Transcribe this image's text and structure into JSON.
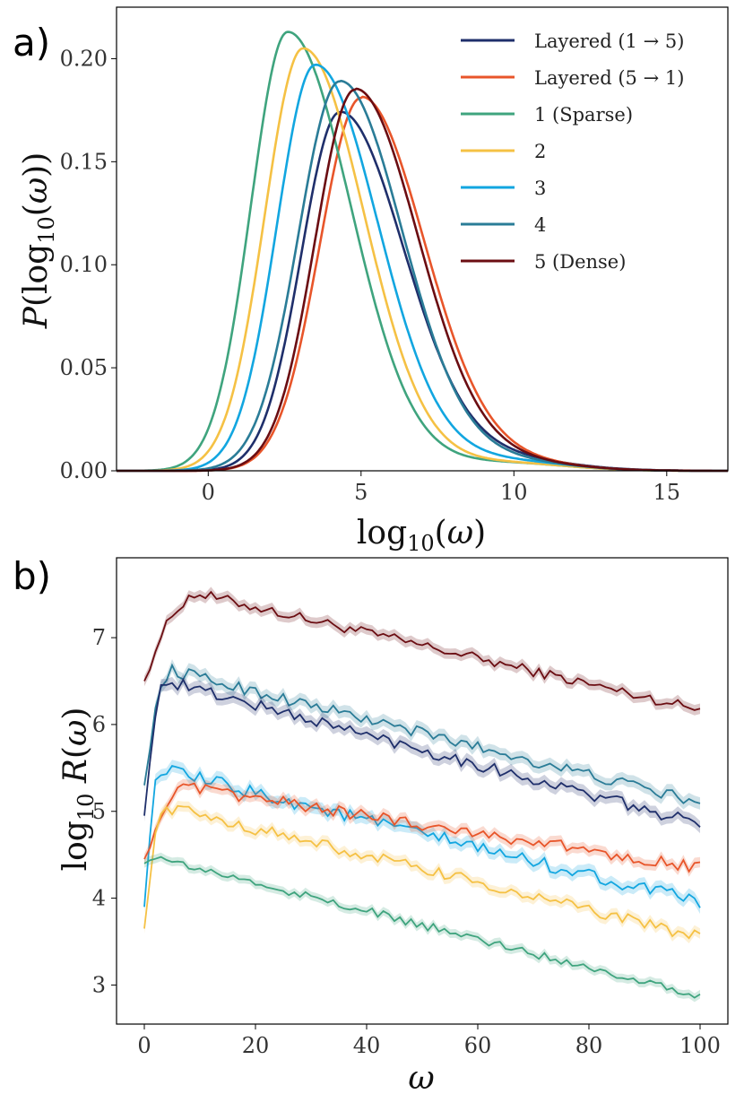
{
  "panels": {
    "a": "a)",
    "b": "b)"
  },
  "chart_data": [
    {
      "type": "line",
      "title": "",
      "xlabel": "log10(ω)",
      "ylabel": "P(log10(ω))",
      "xlim": [
        -3,
        17
      ],
      "ylim": [
        0,
        0.225
      ],
      "xticks": [
        0,
        5,
        10,
        15
      ],
      "yticks": [
        0.0,
        0.05,
        0.1,
        0.15,
        0.2
      ],
      "xtick_labels": [
        "0",
        "5",
        "10",
        "15"
      ],
      "ytick_labels": [
        "0.00",
        "0.05",
        "0.10",
        "0.15",
        "0.20"
      ],
      "legend_position": "top-right",
      "series": [
        {
          "name": "Layered (1 → 5)",
          "color": "#1f2f6b",
          "mode": 4.3,
          "peak": 0.174,
          "sl": 1.25,
          "sr": 2.1,
          "tail": 0.006
        },
        {
          "name": "Layered (5 → 1)",
          "color": "#e8552a",
          "mode": 5.0,
          "peak": 0.181,
          "sl": 1.35,
          "sr": 2.05,
          "tail": 0.005
        },
        {
          "name": "1 (Sparse)",
          "color": "#3fa47e",
          "mode": 2.6,
          "peak": 0.213,
          "sl": 1.2,
          "sr": 2.05,
          "tail": 0.004
        },
        {
          "name": "2",
          "color": "#f5c144",
          "mode": 3.1,
          "peak": 0.205,
          "sl": 1.25,
          "sr": 2.0,
          "tail": 0.004
        },
        {
          "name": "3",
          "color": "#12a6e0",
          "mode": 3.5,
          "peak": 0.197,
          "sl": 1.25,
          "sr": 2.05,
          "tail": 0.005
        },
        {
          "name": "4",
          "color": "#2a7c97",
          "mode": 4.3,
          "peak": 0.189,
          "sl": 1.35,
          "sr": 2.05,
          "tail": 0.005
        },
        {
          "name": "5 (Dense)",
          "color": "#6b0d12",
          "mode": 4.8,
          "peak": 0.185,
          "sl": 1.3,
          "sr": 2.05,
          "tail": 0.005
        }
      ]
    },
    {
      "type": "line",
      "title": "",
      "xlabel": "ω",
      "ylabel": "log10 R(ω)",
      "xlim": [
        -5,
        105
      ],
      "ylim": [
        2.55,
        7.92
      ],
      "xticks": [
        0,
        20,
        40,
        60,
        80,
        100
      ],
      "yticks": [
        3,
        4,
        5,
        6,
        7
      ],
      "xtick_labels": [
        "0",
        "20",
        "40",
        "60",
        "80",
        "100"
      ],
      "ytick_labels": [
        "3",
        "4",
        "5",
        "6",
        "7"
      ],
      "series": [
        {
          "name": "5 (Dense)",
          "color": "#6b0d12",
          "start": 6.5,
          "peak_x": 10,
          "peak_y": 7.5,
          "end": 6.17,
          "noise": 0.06,
          "band": 0.06
        },
        {
          "name": "4",
          "color": "#2a7c97",
          "start": 5.3,
          "peak_x": 5,
          "peak_y": 6.62,
          "end": 5.1,
          "noise": 0.07,
          "band": 0.07
        },
        {
          "name": "Layered (1 → 5)",
          "color": "#1f2f6b",
          "start": 4.95,
          "peak_x": 4,
          "peak_y": 6.5,
          "end": 4.85,
          "noise": 0.07,
          "band": 0.07
        },
        {
          "name": "3",
          "color": "#12a6e0",
          "start": 3.9,
          "peak_x": 3,
          "peak_y": 5.48,
          "end": 3.95,
          "noise": 0.08,
          "band": 0.07
        },
        {
          "name": "Layered (5 → 1)",
          "color": "#e8552a",
          "start": 4.45,
          "peak_x": 8,
          "peak_y": 5.27,
          "end": 4.35,
          "noise": 0.07,
          "band": 0.06
        },
        {
          "name": "2",
          "color": "#f5c144",
          "start": 3.65,
          "peak_x": 4,
          "peak_y": 5.05,
          "end": 3.55,
          "noise": 0.07,
          "band": 0.06
        },
        {
          "name": "1 (Sparse)",
          "color": "#3fa47e",
          "start": 4.4,
          "peak_x": 1,
          "peak_y": 4.48,
          "end": 2.88,
          "noise": 0.05,
          "band": 0.05
        }
      ]
    }
  ]
}
